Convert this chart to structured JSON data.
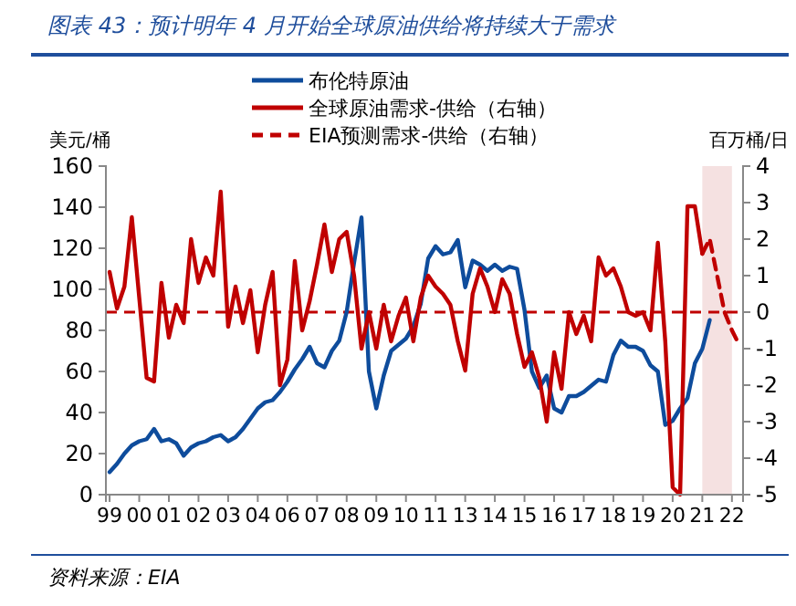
{
  "chart_data": {
    "type": "line",
    "title": "图表 43：预计明年 4 月开始全球原油供给将持续大于需求",
    "ylabel": "美元/桶",
    "y2label": "百万桶/日",
    "annotations": [
      "资料来源：EIA"
    ],
    "categories": [
      "99",
      null,
      null,
      null,
      "00",
      null,
      null,
      null,
      "01",
      null,
      null,
      null,
      "02",
      null,
      null,
      null,
      "03",
      null,
      null,
      null,
      "04",
      null,
      null,
      null,
      "06",
      null,
      null,
      null,
      "07",
      null,
      null,
      null,
      "08",
      null,
      null,
      null,
      "09",
      null,
      null,
      null,
      "10",
      null,
      null,
      null,
      "11",
      null,
      null,
      null,
      "13",
      null,
      null,
      null,
      "14",
      null,
      null,
      null,
      "15",
      null,
      null,
      null,
      "16",
      null,
      null,
      null,
      "17",
      null,
      null,
      null,
      "18",
      null,
      null,
      null,
      "19",
      null,
      null,
      null,
      "20",
      null,
      null,
      null,
      "21",
      null,
      null,
      null,
      "22",
      null
    ],
    "ylim": [
      0,
      160
    ],
    "yticks": [
      0,
      20,
      40,
      60,
      80,
      100,
      120,
      140,
      160
    ],
    "y2lim": [
      -5,
      4
    ],
    "y2ticks": [
      -5,
      -4,
      -3,
      -2,
      -1,
      0,
      1,
      2,
      3,
      4
    ],
    "legend": "top",
    "grid": false,
    "series": [
      {
        "name": "布伦特原油",
        "color": "#0e4c9c",
        "line_style": "solid",
        "values": [
          11,
          15,
          20,
          24,
          26,
          27,
          32,
          26,
          27,
          25,
          19,
          23,
          25,
          26,
          28,
          29,
          26,
          28,
          32,
          37,
          42,
          45,
          46,
          50,
          55,
          61,
          66,
          72,
          64,
          62,
          70,
          75,
          89,
          113,
          135,
          60,
          42,
          58,
          70,
          73,
          76,
          82,
          93,
          115,
          121,
          117,
          118,
          124,
          101,
          114,
          112,
          109,
          112,
          109,
          111,
          110,
          90,
          60,
          52,
          58,
          42,
          40,
          48,
          48,
          50,
          53,
          56,
          55,
          68,
          75,
          72,
          72,
          70,
          63,
          60,
          34,
          36,
          42,
          47,
          64,
          71,
          85,
          null,
          null,
          null,
          null
        ]
      },
      {
        "name": "全球原油需求-供给（右轴）",
        "color": "#c00000",
        "axis": "y2",
        "line_style": "solid",
        "values": [
          1.1,
          0.1,
          0.7,
          2.6,
          0.4,
          -1.8,
          -1.9,
          0.8,
          -0.7,
          0.2,
          -0.3,
          2.0,
          0.8,
          1.5,
          1.0,
          3.3,
          -0.4,
          0.7,
          -0.3,
          0.6,
          -1.1,
          0.2,
          1.1,
          -2.0,
          -1.3,
          1.4,
          -0.5,
          0.3,
          1.3,
          2.4,
          1.1,
          2.0,
          2.2,
          1.0,
          -1.0,
          0.0,
          -1.0,
          0.2,
          -0.8,
          -0.1,
          0.4,
          -0.8,
          0.4,
          1.0,
          0.7,
          0.5,
          0.2,
          -0.8,
          -1.6,
          0.5,
          1.2,
          0.7,
          0.0,
          0.9,
          0.5,
          -0.6,
          -1.5,
          -1.1,
          -1.8,
          -3.0,
          -1.1,
          -2.1,
          0.0,
          -0.6,
          -0.1,
          -0.8,
          1.5,
          1.0,
          1.2,
          0.7,
          0.0,
          -0.1,
          0.0,
          -0.5,
          1.9,
          -0.8,
          -4.8,
          -5.0,
          2.9,
          2.9,
          1.6,
          null,
          null,
          null,
          null,
          null
        ]
      },
      {
        "name": "EIA预测需求-供给（右轴）",
        "color": "#c00000",
        "axis": "y2",
        "line_style": "dashed",
        "values": [
          null,
          null,
          null,
          null,
          null,
          null,
          null,
          null,
          null,
          null,
          null,
          null,
          null,
          null,
          null,
          null,
          null,
          null,
          null,
          null,
          null,
          null,
          null,
          null,
          null,
          null,
          null,
          null,
          null,
          null,
          null,
          null,
          null,
          null,
          null,
          null,
          null,
          null,
          null,
          null,
          null,
          null,
          null,
          null,
          null,
          null,
          null,
          null,
          null,
          null,
          null,
          null,
          null,
          null,
          null,
          null,
          null,
          null,
          null,
          null,
          null,
          null,
          null,
          null,
          null,
          null,
          null,
          null,
          null,
          null,
          null,
          null,
          null,
          null,
          null,
          null,
          null,
          null,
          null,
          null,
          1.6,
          2.0,
          1.0,
          0.0,
          -0.5,
          -0.9
        ]
      }
    ],
    "ref_lines": [
      {
        "axis": "y2",
        "value": 0,
        "color": "#c00000",
        "line_style": "dashed"
      }
    ],
    "bands": [
      {
        "axis": "x",
        "from": "21",
        "to": "22",
        "color": "#f5e1e1"
      }
    ]
  }
}
